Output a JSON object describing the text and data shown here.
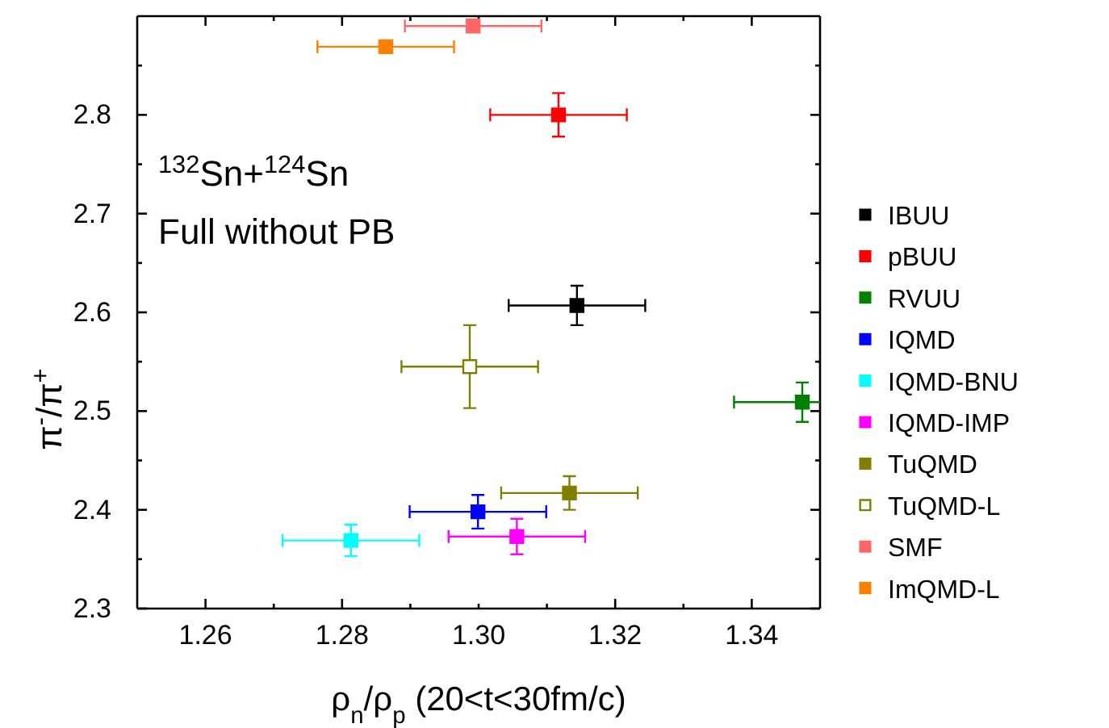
{
  "chart_data": {
    "type": "scatter",
    "xlabel": "ρ$_{n}$/ρ$_{p}$ (20<t<30fm/c)",
    "ylabel": "π$^{-}$/π$^{+}$",
    "annotations": [
      "$^{132}$Sn+$^{124}$Sn",
      "Full without PB"
    ],
    "xlim": [
      1.25,
      1.35
    ],
    "ylim": [
      2.3,
      2.9
    ],
    "xticks": [
      1.26,
      {
        "value": 1.27,
        "label": null
      },
      1.28,
      {
        "value": 1.29,
        "label": null
      },
      {
        "value": 1.3,
        "label": "1.30"
      },
      {
        "value": 1.31,
        "label": null
      },
      1.32,
      {
        "value": 1.33,
        "label": null
      },
      1.34
    ],
    "yticks": [
      2.3,
      {
        "value": 2.35,
        "label": null
      },
      2.4,
      {
        "value": 2.45,
        "label": null
      },
      2.5,
      {
        "value": 2.55,
        "label": null
      },
      2.6,
      {
        "value": 2.65,
        "label": null
      },
      2.7,
      {
        "value": 2.75,
        "label": null
      },
      2.8,
      {
        "value": 2.85,
        "label": null
      }
    ],
    "marker": "square",
    "legend": "right",
    "grid": false,
    "series": [
      {
        "name": "IBUU",
        "color": "#000000",
        "x": [
          1.3144
        ],
        "values": [
          2.607
        ],
        "errors": [
          0.02
        ],
        "xerrors": [
          0.01
        ]
      },
      {
        "name": "pBUU",
        "color": "#ff0000",
        "x": [
          1.3117
        ],
        "values": [
          2.8
        ],
        "errors": [
          0.022
        ],
        "xerrors": [
          0.01
        ]
      },
      {
        "name": "RVUU",
        "color": "#008000",
        "x": [
          1.3474
        ],
        "values": [
          2.509
        ],
        "errors": [
          0.02
        ],
        "xerrors": [
          0.01
        ]
      },
      {
        "name": "IQMD",
        "color": "#0000ff",
        "x": [
          1.2999
        ],
        "values": [
          2.398
        ],
        "errors": [
          0.017
        ],
        "xerrors": [
          0.01
        ]
      },
      {
        "name": "IQMD-BNU",
        "color": "#00ffff",
        "x": [
          1.2813
        ],
        "values": [
          2.369
        ],
        "errors": [
          0.016
        ],
        "xerrors": [
          0.01
        ]
      },
      {
        "name": "IQMD-IMP",
        "color": "#ff00ff",
        "x": [
          1.3056
        ],
        "values": [
          2.373
        ],
        "errors": [
          0.018
        ],
        "xerrors": [
          0.01
        ]
      },
      {
        "name": "TuQMD",
        "color": "#808000",
        "x": [
          1.3133
        ],
        "values": [
          2.417
        ],
        "errors": [
          0.017
        ],
        "xerrors": [
          0.01
        ]
      },
      {
        "name": "TuQMD-L",
        "color": "#808000",
        "colors": [
          "#ffffff"
        ],
        "x": [
          1.2987
        ],
        "values": [
          2.545
        ],
        "errors": [
          0.042
        ],
        "xerrors": [
          0.01
        ]
      },
      {
        "name": "SMF",
        "color": "#ff6666",
        "x": [
          1.2992
        ],
        "values": [
          2.89
        ],
        "xerrors": [
          0.01
        ]
      },
      {
        "name": "ImQMD-L",
        "color": "#ff8000",
        "x": [
          1.2864
        ],
        "values": [
          2.869
        ],
        "xerrors": [
          0.01
        ]
      }
    ]
  }
}
